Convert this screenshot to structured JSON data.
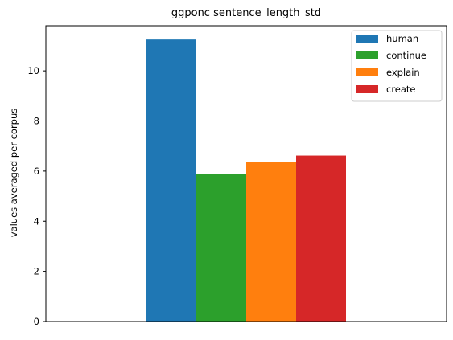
{
  "chart_data": {
    "type": "bar",
    "title": "ggponc sentence_length_std",
    "xlabel": "",
    "ylabel": "values averaged per corpus",
    "ylim": [
      0,
      11.8
    ],
    "yticks": [
      0,
      2,
      4,
      6,
      8,
      10
    ],
    "categories": [
      ""
    ],
    "series": [
      {
        "name": "human",
        "values": [
          11.25
        ],
        "color": "#1f77b4"
      },
      {
        "name": "continue",
        "values": [
          5.87
        ],
        "color": "#2ca02c"
      },
      {
        "name": "explain",
        "values": [
          6.35
        ],
        "color": "#ff7f0e"
      },
      {
        "name": "create",
        "values": [
          6.62
        ],
        "color": "#d62728"
      }
    ],
    "legend_position": "top-right",
    "grid": false
  }
}
